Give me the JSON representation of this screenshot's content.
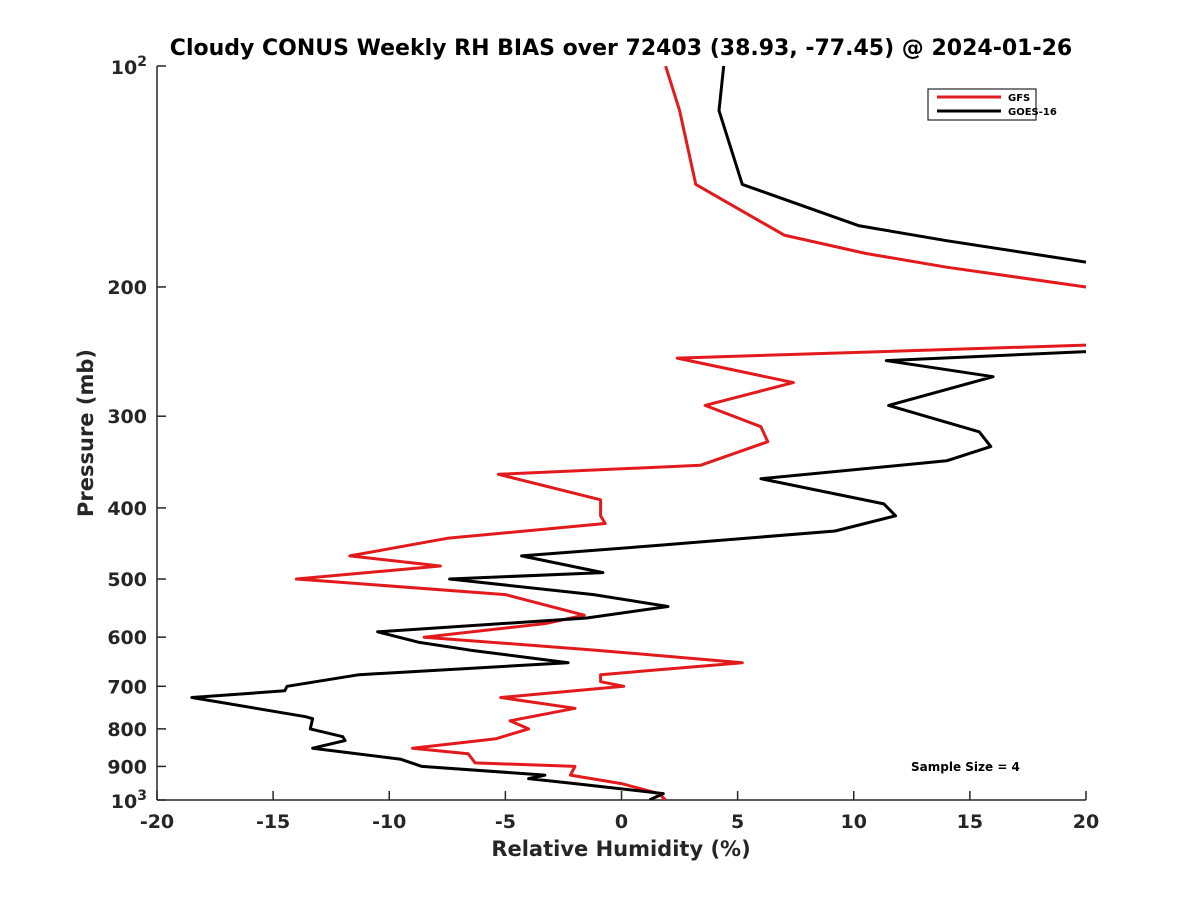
{
  "chart_data": {
    "type": "line",
    "title": "Cloudy CONUS Weekly RH BIAS over 72403 (38.93, -77.45) @ 2024-01-26",
    "xlabel": "Relative Humidity (%)",
    "ylabel": "Pressure (mb)",
    "xlim": [
      -20,
      20
    ],
    "ylim": [
      1000,
      100
    ],
    "y_scale": "log",
    "y_reversed": true,
    "grid": false,
    "legend_position": "top-right",
    "x_ticks": [
      "-20",
      "-15",
      "-10",
      "-5",
      "0",
      "5",
      "10",
      "15",
      "20"
    ],
    "x_tick_values": [
      -20,
      -15,
      -10,
      -5,
      0,
      5,
      10,
      15,
      20
    ],
    "y_ticks_plain": [
      {
        "value": 200,
        "label": "200"
      },
      {
        "value": 300,
        "label": "300"
      },
      {
        "value": 400,
        "label": "400"
      },
      {
        "value": 500,
        "label": "500"
      },
      {
        "value": 600,
        "label": "600"
      },
      {
        "value": 700,
        "label": "700"
      },
      {
        "value": 800,
        "label": "800"
      },
      {
        "value": 900,
        "label": "900"
      }
    ],
    "y_ticks_exp": [
      {
        "value": 100,
        "base": "10",
        "exp": "2"
      },
      {
        "value": 1000,
        "base": "10",
        "exp": "3"
      }
    ],
    "annotation": "Sample Size = 4",
    "series": [
      {
        "name": "GFS",
        "color": "#e31a1c",
        "points": [
          [
            1.9,
            1000
          ],
          [
            1.6,
            980
          ],
          [
            0.0,
            950
          ],
          [
            -2.2,
            925
          ],
          [
            -2.0,
            900
          ],
          [
            -6.3,
            890
          ],
          [
            -6.6,
            865
          ],
          [
            -9.0,
            850
          ],
          [
            -5.4,
            825
          ],
          [
            -4.0,
            800
          ],
          [
            -4.8,
            780
          ],
          [
            -2.0,
            750
          ],
          [
            -5.2,
            725
          ],
          [
            0.1,
            700
          ],
          [
            -0.9,
            690
          ],
          [
            -0.9,
            675
          ],
          [
            5.2,
            650
          ],
          [
            -1.1,
            625
          ],
          [
            -8.5,
            600
          ],
          [
            -3.3,
            575
          ],
          [
            -1.6,
            560
          ],
          [
            -5.0,
            525
          ],
          [
            -14.0,
            500
          ],
          [
            -7.8,
            480
          ],
          [
            -11.7,
            465
          ],
          [
            -7.5,
            440
          ],
          [
            -0.7,
            420
          ],
          [
            -0.9,
            410
          ],
          [
            -0.9,
            390
          ],
          [
            -5.3,
            360
          ],
          [
            3.4,
            350
          ],
          [
            6.3,
            325
          ],
          [
            6.0,
            310
          ],
          [
            3.6,
            290
          ],
          [
            7.4,
            270
          ],
          [
            2.4,
            250
          ],
          [
            20.0,
            240
          ]
        ]
      },
      {
        "name": "GOES-16",
        "color": "#000000",
        "points": [
          [
            1.2,
            1000
          ],
          [
            1.8,
            980
          ],
          [
            -2.0,
            950
          ],
          [
            -4.0,
            935
          ],
          [
            -3.3,
            925
          ],
          [
            -8.6,
            900
          ],
          [
            -9.5,
            880
          ],
          [
            -13.3,
            850
          ],
          [
            -11.9,
            830
          ],
          [
            -12.0,
            820
          ],
          [
            -13.4,
            800
          ],
          [
            -13.3,
            775
          ],
          [
            -13.6,
            770
          ],
          [
            -18.5,
            725
          ],
          [
            -14.5,
            710
          ],
          [
            -14.4,
            700
          ],
          [
            -11.3,
            675
          ],
          [
            -2.3,
            650
          ],
          [
            -6.5,
            625
          ],
          [
            -8.7,
            610
          ],
          [
            -10.5,
            590
          ],
          [
            -1.5,
            565
          ],
          [
            2.0,
            545
          ],
          [
            -1.2,
            525
          ],
          [
            -7.4,
            500
          ],
          [
            -0.8,
            490
          ],
          [
            -4.3,
            465
          ],
          [
            1.5,
            450
          ],
          [
            9.2,
            430
          ],
          [
            11.8,
            410
          ],
          [
            11.3,
            395
          ],
          [
            6.0,
            365
          ],
          [
            14.0,
            345
          ],
          [
            15.9,
            330
          ],
          [
            15.4,
            315
          ],
          [
            11.5,
            290
          ],
          [
            16.0,
            265
          ],
          [
            11.4,
            252
          ],
          [
            20.0,
            245
          ]
        ]
      }
    ],
    "upper_series": [
      {
        "name": "GFS",
        "color": "#e31a1c",
        "points": [
          [
            1.9,
            100
          ],
          [
            2.5,
            115
          ],
          [
            3.2,
            145
          ],
          [
            7.0,
            170
          ],
          [
            10.5,
            180
          ],
          [
            14.0,
            188
          ],
          [
            20.0,
            200
          ]
        ]
      },
      {
        "name": "GOES-16",
        "color": "#000000",
        "points": [
          [
            4.4,
            100
          ],
          [
            4.2,
            115
          ],
          [
            5.2,
            145
          ],
          [
            10.2,
            165
          ],
          [
            14.0,
            173
          ],
          [
            20.0,
            185
          ]
        ]
      }
    ]
  }
}
